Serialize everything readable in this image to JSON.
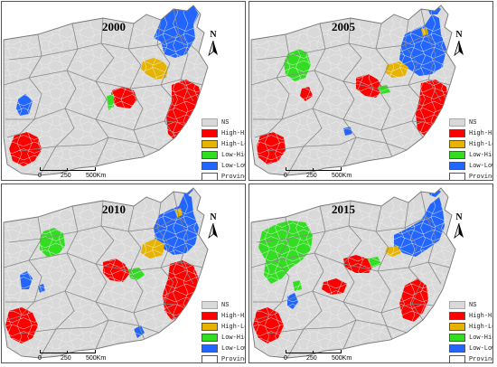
{
  "legend_items": [
    {
      "label": "NS",
      "color": "#d9d9d9"
    },
    {
      "label": "High-High",
      "color": "#ff0000"
    },
    {
      "label": "High-Low",
      "color": "#e6b400"
    },
    {
      "label": "Low-High",
      "color": "#33dd22"
    },
    {
      "label": "Low-Low",
      "color": "#2266ff"
    },
    {
      "label": "Province",
      "color": "#ffffff"
    }
  ],
  "scale": {
    "zero": "0",
    "mid": "250",
    "end": "500Km"
  },
  "north_label": "N",
  "colors": {
    "ns": "#d9d9d9",
    "high_high": "#ff0000",
    "high_low": "#e6b400",
    "low_high": "#33dd22",
    "low_low": "#2266ff",
    "boundary": "#777777",
    "county_line": "#f2f2f2"
  },
  "panels": [
    {
      "year": "2000"
    },
    {
      "year": "2005"
    },
    {
      "year": "2010"
    },
    {
      "year": "2015"
    }
  ]
}
